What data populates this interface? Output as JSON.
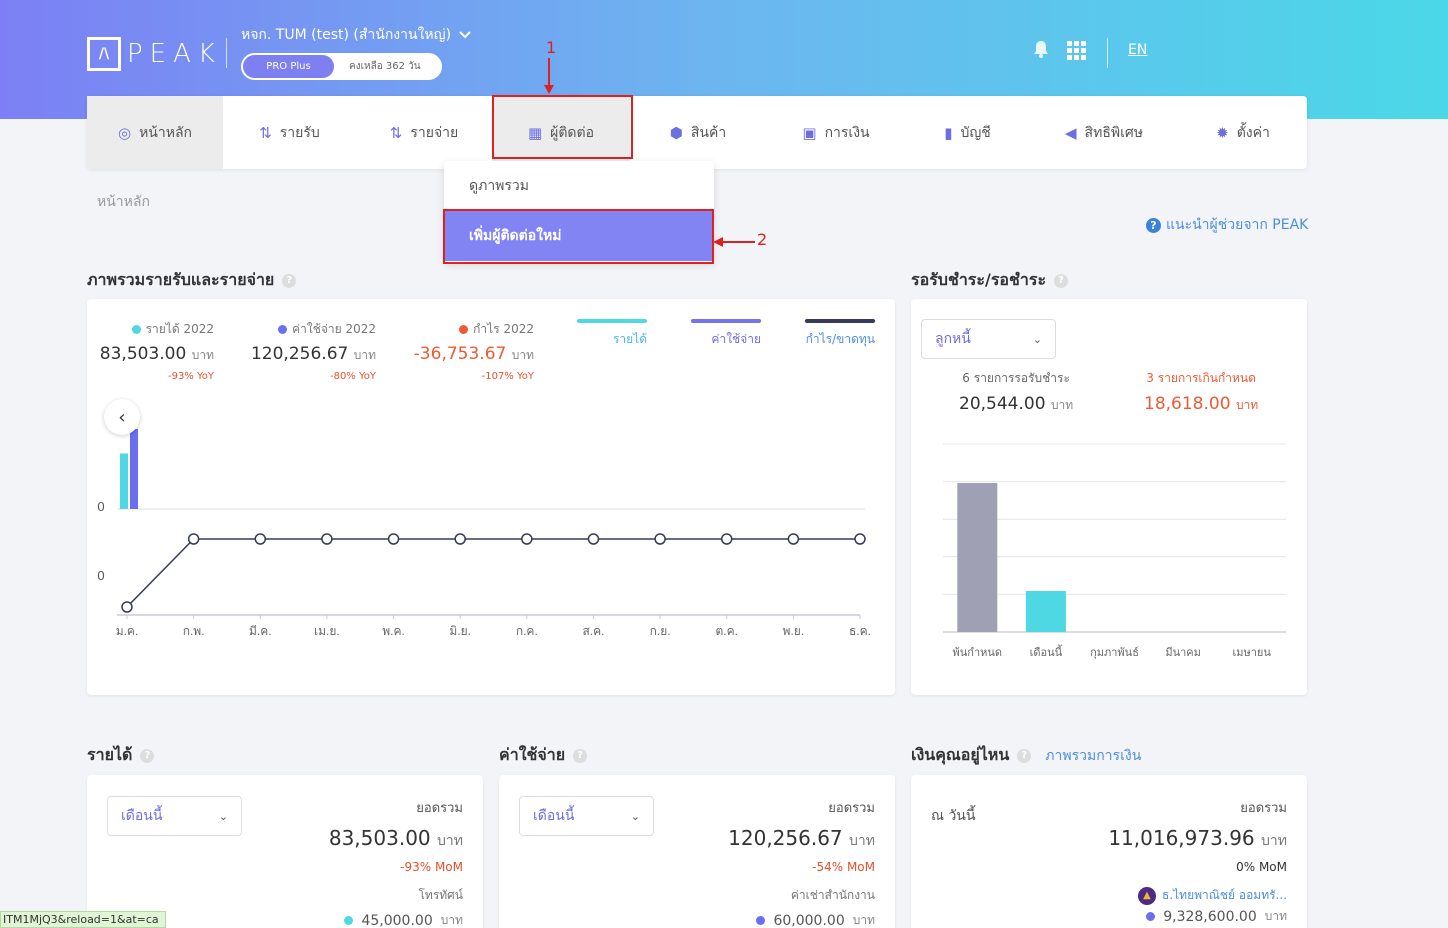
{
  "header": {
    "logo_text": "PEAK",
    "logo_mark": "/\\",
    "company": "หจก. TUM (test) (สำนักงานใหญ่)",
    "plan_badge": "PRO Plus",
    "plan_days": "คงเหลือ 362 วัน",
    "language": "EN"
  },
  "nav": {
    "items": [
      {
        "label": "หน้าหลัก",
        "icon": "dashboard-icon"
      },
      {
        "label": "รายรับ",
        "icon": "income-icon"
      },
      {
        "label": "รายจ่าย",
        "icon": "expense-icon"
      },
      {
        "label": "ผู้ติดต่อ",
        "icon": "contacts-icon"
      },
      {
        "label": "สินค้า",
        "icon": "product-icon"
      },
      {
        "label": "การเงิน",
        "icon": "money-icon"
      },
      {
        "label": "บัญชี",
        "icon": "accounting-icon"
      },
      {
        "label": "สิทธิพิเศษ",
        "icon": "megaphone-icon"
      },
      {
        "label": "ตั้งค่า",
        "icon": "gear-icon"
      }
    ]
  },
  "contacts_menu": {
    "overview": "ดูภาพรวม",
    "add_new": "เพิ่มผู้ติดต่อใหม่"
  },
  "annotations": {
    "step1": "1",
    "step2": "2"
  },
  "breadcrumb": "หน้าหลัก",
  "help_link": "แนะนำผู้ช่วยจาก PEAK",
  "overview": {
    "title": "ภาพรวมรายรับและรายจ่าย",
    "stats": [
      {
        "label": "รายได้ 2022",
        "value": "83,503.00",
        "unit": "บาท",
        "yoy": "-93% YoY",
        "color": "#4dd8e4"
      },
      {
        "label": "ค่าใช้จ่าย 2022",
        "value": "120,256.67",
        "unit": "บาท",
        "yoy": "-80% YoY",
        "color": "#6c6ef0"
      },
      {
        "label": "กำไร 2022",
        "value": "-36,753.67",
        "unit": "บาท",
        "yoy": "-107% YoY",
        "color": "#ef5a33"
      }
    ],
    "legend": [
      {
        "label": "รายได้",
        "color": "#4dd8e4"
      },
      {
        "label": "ค่าใช้จ่าย",
        "color": "#7475ee"
      },
      {
        "label": "กำไร/ขาดทุน",
        "color": "#353b58"
      }
    ]
  },
  "receivables": {
    "title": "รอรับชำระ/รอชำระ",
    "select": "ลูกหนี้",
    "pending_label": "6 รายการรอรับชำระ",
    "pending_value": "20,544.00",
    "overdue_label": "3 รายการเกินกำหนด",
    "overdue_value": "18,618.00",
    "unit": "บาท"
  },
  "income": {
    "title": "รายได้",
    "select": "เดือนนี้",
    "total_label": "ยอดรวม",
    "total": "83,503.00",
    "unit": "บาท",
    "mom": "-93% MoM",
    "sub_label": "โทรทัศน์",
    "sub_value": "45,000.00"
  },
  "expense": {
    "title": "ค่าใช้จ่าย",
    "select": "เดือนนี้",
    "total_label": "ยอดรวม",
    "total": "120,256.67",
    "unit": "บาท",
    "mom": "-54% MoM",
    "sub_label": "ค่าเช่าสำนักงาน",
    "sub_value": "60,000.00"
  },
  "money": {
    "title": "เงินคุณอยู่ไหน",
    "link": "ภาพรวมการเงิน",
    "as_of": "ณ วันนี้",
    "total_label": "ยอดรวม",
    "total": "11,016,973.96",
    "unit": "บาท",
    "mom": "0% MoM",
    "bank": "ธ.ไทยพาณิชย์ ออมทรั...",
    "bank_value": "9,328,600.00"
  },
  "status_url": "ITM1MjQ3&reload=1&at=ca",
  "chart_data": [
    {
      "type": "line",
      "title": "ภาพรวมรายรับและรายจ่าย",
      "categories": [
        "ม.ค.",
        "ก.พ.",
        "มี.ค.",
        "เม.ย.",
        "พ.ค.",
        "มิ.ย.",
        "ก.ค.",
        "ส.ค.",
        "ก.ย.",
        "ต.ค.",
        "พ.ย.",
        "ธ.ค."
      ],
      "y_tick_labels": [
        "0",
        "0"
      ],
      "series": [
        {
          "name": "รายได้",
          "kind": "bar",
          "values": [
            83503,
            0,
            0,
            0,
            0,
            0,
            0,
            0,
            0,
            0,
            0,
            0
          ]
        },
        {
          "name": "ค่าใช้จ่าย",
          "kind": "bar",
          "values": [
            120256.67,
            0,
            0,
            0,
            0,
            0,
            0,
            0,
            0,
            0,
            0,
            0
          ]
        },
        {
          "name": "กำไร/ขาดทุน",
          "kind": "line",
          "values": [
            -36753.67,
            0,
            0,
            0,
            0,
            0,
            0,
            0,
            0,
            0,
            0,
            0
          ]
        }
      ]
    },
    {
      "type": "bar",
      "title": "รอรับชำระ/รอชำระ",
      "categories": [
        "พ้นกำหนด",
        "เดือนนี้",
        "กุมภาพันธ์",
        "มีนาคม",
        "เมษายน"
      ],
      "values": [
        20,
        5.5,
        0,
        0,
        0
      ],
      "colors": [
        "#a0a0b4",
        "#4dd8e4"
      ],
      "ylim": [
        0,
        20
      ]
    }
  ]
}
